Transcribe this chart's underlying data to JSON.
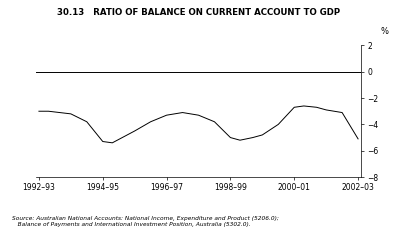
{
  "title": "30.13   RATIO OF BALANCE ON CURRENT ACCOUNT TO GDP",
  "ylabel_text": "%",
  "x_labels": [
    "1992–93",
    "1994–95",
    "1996–97",
    "1998–99",
    "2000–01",
    "2002–03"
  ],
  "x_positions": [
    0,
    2,
    4,
    6,
    8,
    10
  ],
  "y_data_x": [
    0,
    0.3,
    1.0,
    1.5,
    2.0,
    2.3,
    3.0,
    3.5,
    4.0,
    4.5,
    5.0,
    5.5,
    6.0,
    6.3,
    6.7,
    7.0,
    7.5,
    8.0,
    8.3,
    8.7,
    9.0,
    9.5,
    10.0
  ],
  "y_data_y": [
    -3.0,
    -3.0,
    -3.2,
    -3.8,
    -5.3,
    -5.4,
    -4.5,
    -3.8,
    -3.3,
    -3.1,
    -3.3,
    -3.8,
    -5.0,
    -5.2,
    -5.0,
    -4.8,
    -4.0,
    -2.7,
    -2.6,
    -2.7,
    -2.9,
    -3.1,
    -5.1
  ],
  "ylim": [
    -8,
    2
  ],
  "yticks": [
    2,
    0,
    -2,
    -4,
    -6,
    -8
  ],
  "ytick_labels": [
    "2",
    "0",
    "−2",
    "−4",
    "−6",
    "−8"
  ],
  "line_color": "#000000",
  "background_color": "#ffffff",
  "source_line1": "Source: Australian National Accounts: National Income, Expenditure and Product (5206.0);",
  "source_line2": "   Balance of Payments and International Investment Position, Australia (5302.0)."
}
